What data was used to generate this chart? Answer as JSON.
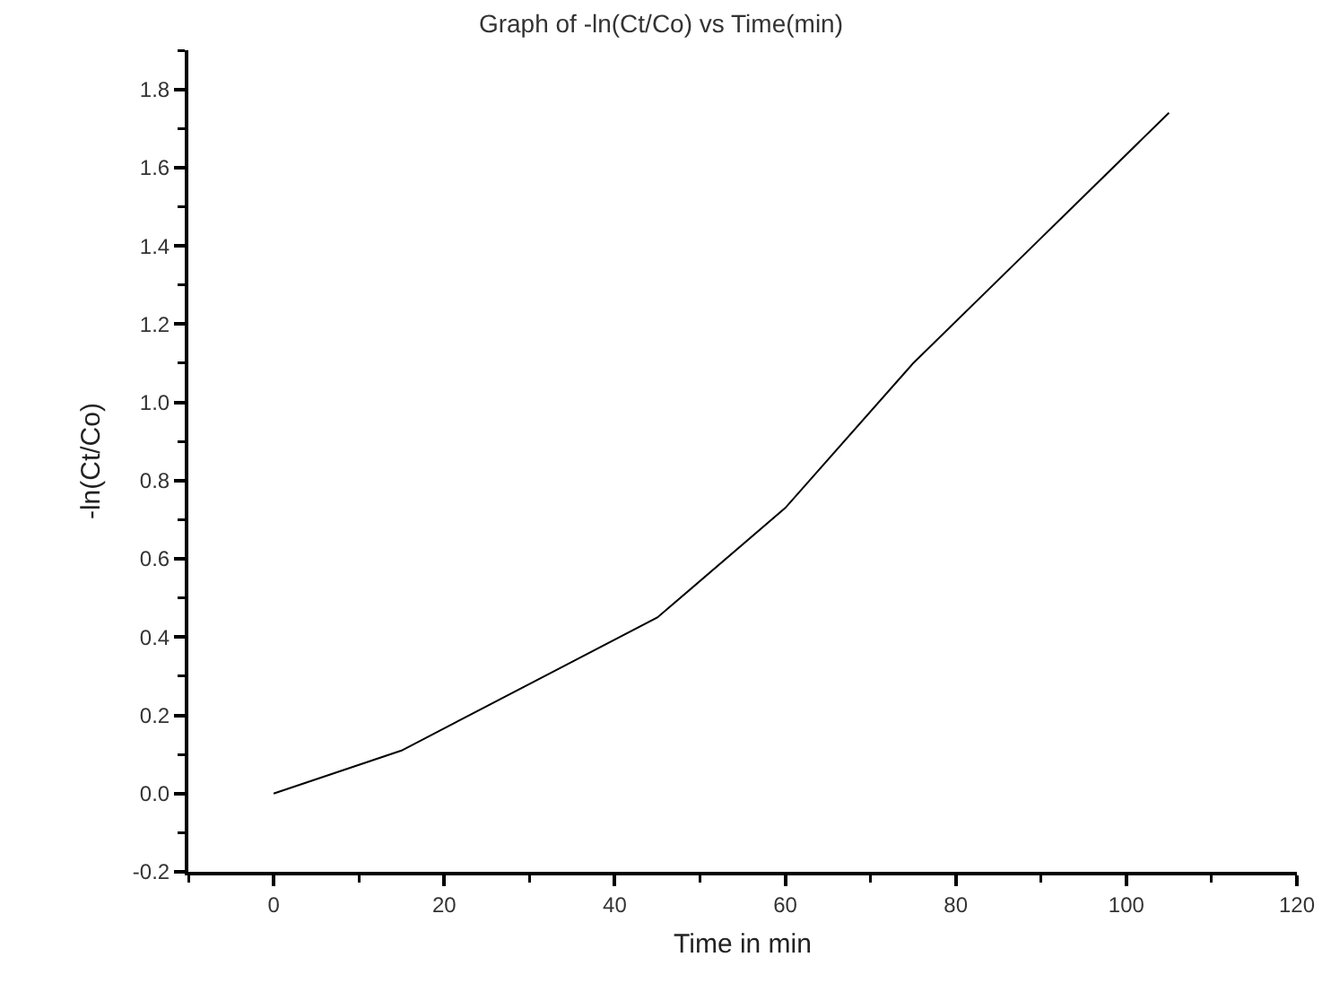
{
  "chart_data": {
    "type": "line",
    "title": "Graph of -ln(Ct/Co) vs Time(min)",
    "xlabel": "Time in min",
    "ylabel": "-ln(Ct/Co)",
    "x": [
      0,
      15,
      30,
      45,
      60,
      75,
      90,
      105
    ],
    "series": [
      {
        "color": "#000000",
        "values": [
          0,
          0.11,
          0.28,
          0.45,
          0.73,
          1.1,
          1.42,
          1.74
        ]
      }
    ],
    "xlim": [
      -10,
      120
    ],
    "xticks": [
      0,
      20,
      40,
      60,
      80,
      100,
      120
    ],
    "ylim": [
      -0.2,
      1.9
    ],
    "yticks": [
      {
        "value": -0.2,
        "label": "-0.2"
      },
      {
        "value": 0,
        "label": "0.0"
      },
      {
        "value": 0.2,
        "label": "0.2"
      },
      {
        "value": 0.4,
        "label": "0.4"
      },
      {
        "value": 0.6,
        "label": "0.6"
      },
      {
        "value": 0.8,
        "label": "0.8"
      },
      {
        "value": 1,
        "label": "1.0"
      },
      {
        "value": 1.2,
        "label": "1.2"
      },
      {
        "value": 1.4,
        "label": "1.4"
      },
      {
        "value": 1.6,
        "label": "1.6"
      },
      {
        "value": 1.8,
        "label": "1.8"
      }
    ],
    "grid": false,
    "marker": "none",
    "line_style": "solid"
  }
}
